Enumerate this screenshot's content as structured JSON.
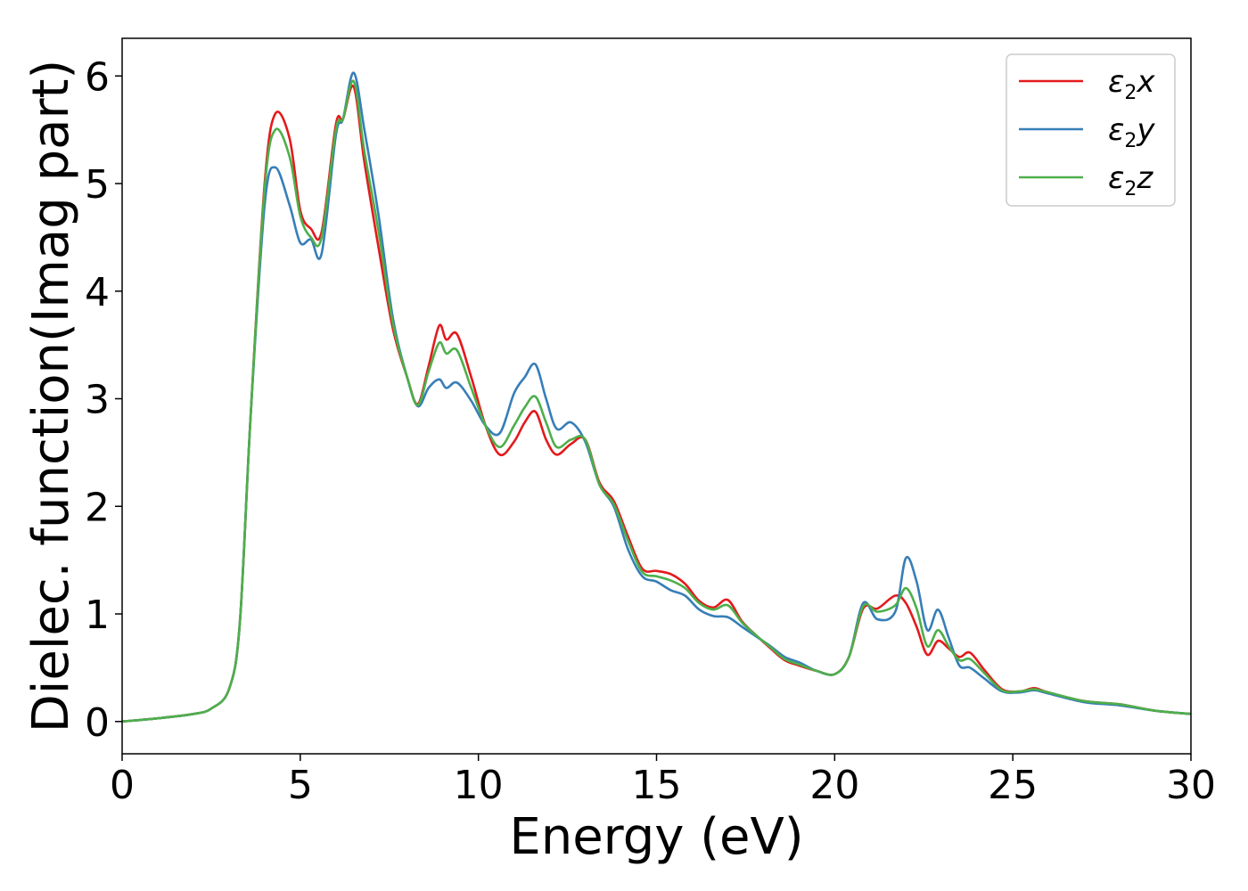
{
  "chart_data": {
    "type": "line",
    "title": "",
    "xlabel": "Energy (eV)",
    "ylabel": "Dielec. function(Imag part)",
    "xlim": [
      0,
      30
    ],
    "ylim": [
      -0.3,
      6.35
    ],
    "xticks": [
      0,
      5,
      10,
      15,
      20,
      25,
      30
    ],
    "yticks": [
      0,
      1,
      2,
      3,
      4,
      5,
      6
    ],
    "grid": false,
    "legend_position": "top-right",
    "x": [
      0,
      1,
      2,
      2.5,
      3,
      3.3,
      3.6,
      4.0,
      4.3,
      4.7,
      5.0,
      5.3,
      5.6,
      6.0,
      6.2,
      6.5,
      6.8,
      7.2,
      7.6,
      8.0,
      8.3,
      8.6,
      8.9,
      9.1,
      9.4,
      9.8,
      10.2,
      10.6,
      11.0,
      11.3,
      11.6,
      11.9,
      12.2,
      12.6,
      13.0,
      13.4,
      13.8,
      14.2,
      14.6,
      15.0,
      15.4,
      15.8,
      16.2,
      16.6,
      17.0,
      17.4,
      17.8,
      18.2,
      18.6,
      19.0,
      19.5,
      20.0,
      20.4,
      20.8,
      21.2,
      21.7,
      22.0,
      22.3,
      22.6,
      22.9,
      23.2,
      23.5,
      23.8,
      24.2,
      24.7,
      25.2,
      25.6,
      26.0,
      27.0,
      28.0,
      29.0,
      30.0
    ],
    "series": [
      {
        "name": "x",
        "color": "#e41a1c",
        "values": [
          0.0,
          0.03,
          0.07,
          0.12,
          0.3,
          0.9,
          2.8,
          5.0,
          5.65,
          5.42,
          4.75,
          4.58,
          4.55,
          5.55,
          5.6,
          5.9,
          5.2,
          4.4,
          3.65,
          3.2,
          2.95,
          3.3,
          3.68,
          3.55,
          3.6,
          3.2,
          2.75,
          2.48,
          2.6,
          2.78,
          2.88,
          2.62,
          2.48,
          2.58,
          2.62,
          2.22,
          2.05,
          1.72,
          1.42,
          1.4,
          1.37,
          1.28,
          1.12,
          1.06,
          1.13,
          0.93,
          0.8,
          0.68,
          0.57,
          0.52,
          0.47,
          0.44,
          0.6,
          1.05,
          1.05,
          1.17,
          1.1,
          0.88,
          0.62,
          0.75,
          0.68,
          0.6,
          0.64,
          0.48,
          0.3,
          0.28,
          0.31,
          0.27,
          0.19,
          0.16,
          0.1,
          0.07
        ]
      },
      {
        "name": "y",
        "color": "#377eb8",
        "values": [
          0.0,
          0.03,
          0.07,
          0.12,
          0.3,
          0.9,
          2.8,
          4.8,
          5.15,
          4.8,
          4.45,
          4.48,
          4.35,
          5.45,
          5.6,
          6.03,
          5.5,
          4.7,
          3.75,
          3.2,
          2.93,
          3.1,
          3.18,
          3.1,
          3.15,
          2.98,
          2.75,
          2.68,
          3.05,
          3.2,
          3.32,
          3.0,
          2.72,
          2.78,
          2.6,
          2.2,
          2.0,
          1.6,
          1.35,
          1.3,
          1.22,
          1.17,
          1.04,
          0.98,
          0.97,
          0.88,
          0.79,
          0.7,
          0.6,
          0.55,
          0.47,
          0.44,
          0.6,
          1.1,
          0.95,
          1.02,
          1.52,
          1.3,
          0.85,
          1.04,
          0.78,
          0.52,
          0.5,
          0.4,
          0.28,
          0.27,
          0.29,
          0.26,
          0.18,
          0.15,
          0.1,
          0.07
        ]
      },
      {
        "name": "z",
        "color": "#4daf4a",
        "values": [
          0.0,
          0.03,
          0.07,
          0.12,
          0.3,
          0.9,
          2.8,
          4.95,
          5.5,
          5.25,
          4.7,
          4.5,
          4.5,
          5.5,
          5.6,
          5.95,
          5.3,
          4.55,
          3.7,
          3.2,
          2.94,
          3.25,
          3.52,
          3.42,
          3.45,
          3.1,
          2.75,
          2.55,
          2.75,
          2.92,
          3.02,
          2.78,
          2.55,
          2.62,
          2.62,
          2.2,
          2.02,
          1.68,
          1.39,
          1.35,
          1.31,
          1.24,
          1.1,
          1.04,
          1.08,
          0.92,
          0.8,
          0.69,
          0.58,
          0.53,
          0.47,
          0.44,
          0.6,
          1.07,
          1.02,
          1.08,
          1.24,
          1.05,
          0.7,
          0.85,
          0.7,
          0.57,
          0.58,
          0.45,
          0.29,
          0.28,
          0.3,
          0.27,
          0.19,
          0.16,
          0.1,
          0.07
        ]
      }
    ]
  }
}
